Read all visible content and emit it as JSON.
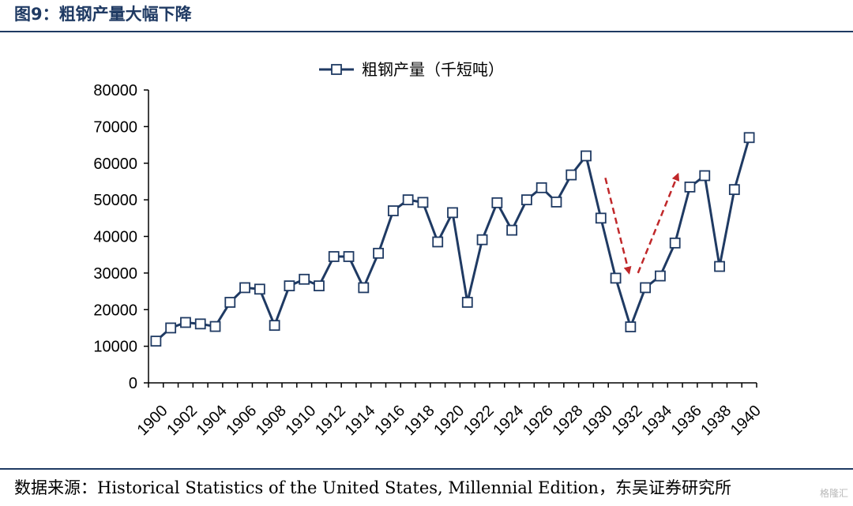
{
  "header": {
    "figure_title": "图9：粗钢产量大幅下降"
  },
  "footer": {
    "source": "数据来源：Historical Statistics of the United States, Millennial Edition，东吴证券研究所",
    "watermark": "格隆汇"
  },
  "colors": {
    "line": "#1f3a63",
    "marker_fill": "#ffffff",
    "arrow": "#c0282a",
    "rule": "#1f3a63"
  },
  "chart_data": {
    "type": "line",
    "legend": {
      "label": "粗钢产量（千短吨）",
      "position": "top-center"
    },
    "x": [
      1900,
      1901,
      1902,
      1903,
      1904,
      1905,
      1906,
      1907,
      1908,
      1909,
      1910,
      1911,
      1912,
      1913,
      1914,
      1915,
      1916,
      1917,
      1918,
      1919,
      1920,
      1921,
      1922,
      1923,
      1924,
      1925,
      1926,
      1927,
      1928,
      1929,
      1930,
      1931,
      1932,
      1933,
      1934,
      1935,
      1936,
      1937,
      1938,
      1939,
      1940
    ],
    "x_tick_labels": [
      "1900",
      "1902",
      "1904",
      "1906",
      "1908",
      "1910",
      "1912",
      "1914",
      "1916",
      "1918",
      "1920",
      "1922",
      "1924",
      "1926",
      "1928",
      "1930",
      "1932",
      "1934",
      "1936",
      "1938",
      "1940"
    ],
    "series": [
      {
        "name": "粗钢产量（千短吨）",
        "values": [
          11400,
          15000,
          16500,
          16100,
          15400,
          22000,
          26000,
          25600,
          15700,
          26500,
          28300,
          26500,
          34500,
          34500,
          26000,
          35400,
          47000,
          50000,
          49300,
          38500,
          46500,
          22000,
          39100,
          49200,
          41700,
          50000,
          53300,
          49400,
          56800,
          62000,
          45000,
          28600,
          15300,
          26000,
          29200,
          38200,
          53500,
          56600,
          31800,
          52800,
          67000
        ]
      }
    ],
    "ylim": [
      0,
      80000
    ],
    "y_ticks": [
      0,
      10000,
      20000,
      30000,
      40000,
      50000,
      60000,
      70000,
      80000
    ],
    "grid": false,
    "xlabel": "",
    "ylabel": "",
    "annotations": [
      {
        "type": "arrow",
        "from": [
          1930.3,
          56000
        ],
        "to": [
          1931.9,
          30000
        ]
      },
      {
        "type": "arrow",
        "from": [
          1932.5,
          30000
        ],
        "to": [
          1935.2,
          57000
        ]
      }
    ]
  }
}
